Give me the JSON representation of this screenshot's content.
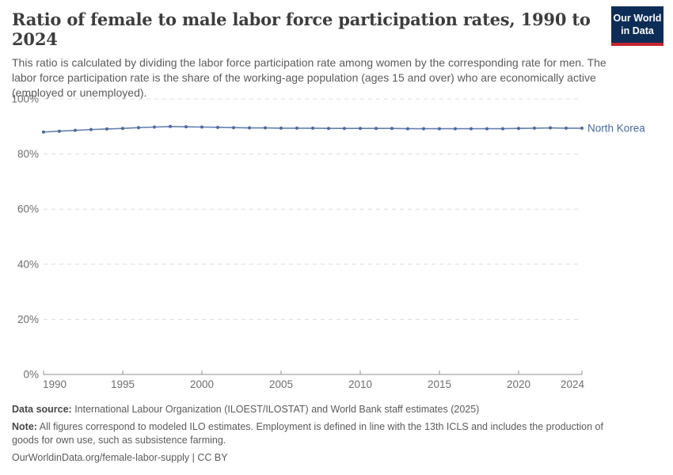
{
  "header": {
    "title": "Ratio of female to male labor force participation rates, 1990 to 2024",
    "subtitle": "This ratio is calculated by dividing the labor force participation rate among women by the corresponding rate for men. The labor force participation rate is the share of the working-age population (ages 15 and over) who are economically active (employed or unemployed).",
    "logo": {
      "line1": "Our World",
      "line2": "in Data",
      "bg_color": "#0d2d57",
      "accent_color": "#c5242e"
    }
  },
  "chart_data": {
    "type": "line",
    "title": "Ratio of female to male labor force participation rates, 1990 to 2024",
    "xlabel": "",
    "ylabel": "",
    "xlim": [
      1990,
      2024
    ],
    "ylim": [
      0,
      100
    ],
    "xticks": [
      1990,
      1995,
      2000,
      2005,
      2010,
      2015,
      2020,
      2024
    ],
    "yticks": [
      0,
      20,
      40,
      60,
      80,
      100
    ],
    "ytick_suffix": "%",
    "grid": "horizontal-dashed",
    "legend_position": "end-of-line-label",
    "colors": {
      "gridline": "#dcdcdc",
      "axis": "#8f8f8f",
      "tick_label": "#6e6e6e"
    },
    "x": [
      1990,
      1991,
      1992,
      1993,
      1994,
      1995,
      1996,
      1997,
      1998,
      1999,
      2000,
      2001,
      2002,
      2003,
      2004,
      2005,
      2006,
      2007,
      2008,
      2009,
      2010,
      2011,
      2012,
      2013,
      2014,
      2015,
      2016,
      2017,
      2018,
      2019,
      2020,
      2021,
      2022,
      2023,
      2024
    ],
    "series": [
      {
        "name": "North Korea",
        "color": "#4a699f",
        "values": [
          88.0,
          88.3,
          88.6,
          88.9,
          89.1,
          89.3,
          89.6,
          89.8,
          90.0,
          89.9,
          89.8,
          89.7,
          89.6,
          89.5,
          89.5,
          89.4,
          89.4,
          89.4,
          89.3,
          89.3,
          89.3,
          89.3,
          89.3,
          89.2,
          89.2,
          89.2,
          89.2,
          89.2,
          89.2,
          89.2,
          89.3,
          89.4,
          89.5,
          89.4,
          89.4
        ]
      }
    ]
  },
  "footer": {
    "data_source_label": "Data source:",
    "data_source": " International Labour Organization (ILOEST/ILOSTAT) and World Bank staff estimates (2025)",
    "note_label": "Note:",
    "note": " All figures correspond to modeled ILO estimates. Employment is defined in line with the 13th ICLS and includes the production of goods for own use, such as subsistence farming.",
    "citation": "OurWorldinData.org/female-labor-supply | CC BY"
  }
}
